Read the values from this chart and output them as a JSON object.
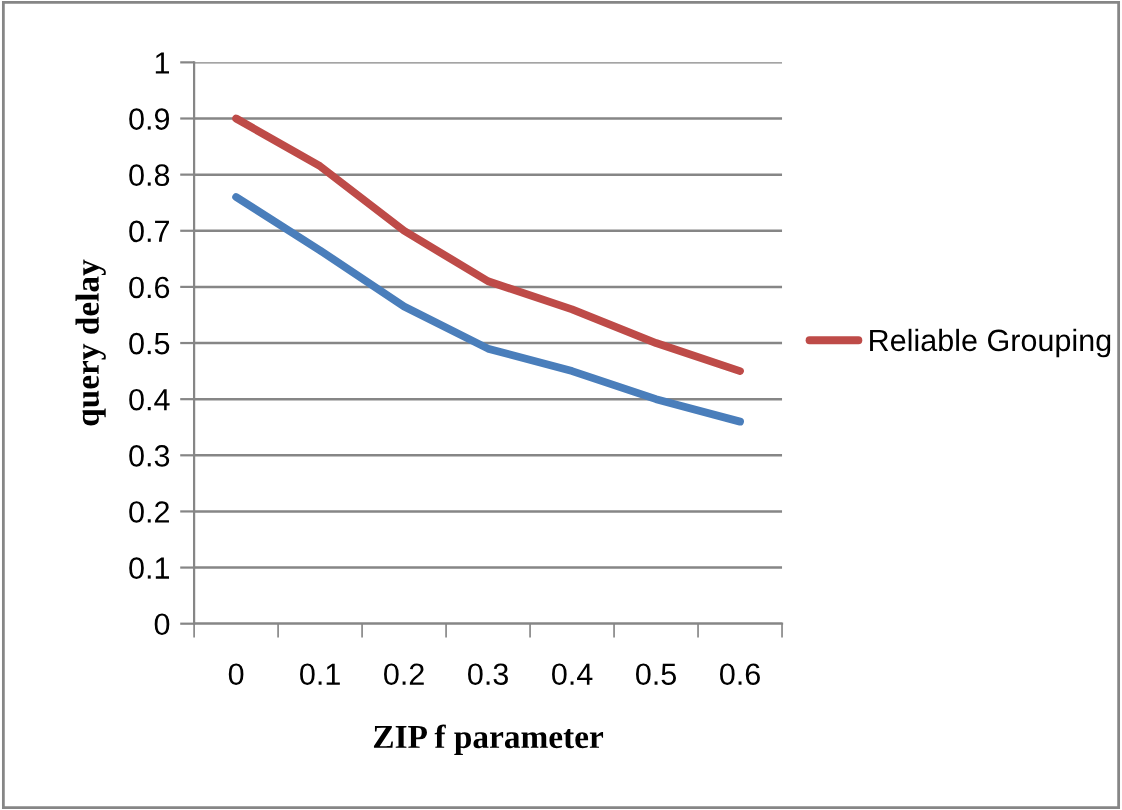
{
  "chart_data": {
    "type": "line",
    "xlabel": "ZIP f parameter",
    "ylabel": "query delay",
    "categories": [
      "0",
      "0.1",
      "0.2",
      "0.3",
      "0.4",
      "0.5",
      "0.6"
    ],
    "series": [
      {
        "name": "Reliable Grouping",
        "color": "#be4b48",
        "values": [
          0.9,
          0.815,
          0.7,
          0.61,
          0.56,
          0.5,
          0.45
        ]
      },
      {
        "color": "#4a7ebb",
        "values": [
          0.76,
          0.665,
          0.565,
          0.49,
          0.45,
          0.4,
          0.36
        ]
      }
    ],
    "ylim": [
      0,
      1
    ],
    "yticks": [
      0,
      0.1,
      0.2,
      0.3,
      0.4,
      0.5,
      0.6,
      0.7,
      0.8,
      0.9,
      1
    ],
    "grid": "y",
    "legend": "right",
    "marker": "none",
    "line_style": "solid"
  }
}
